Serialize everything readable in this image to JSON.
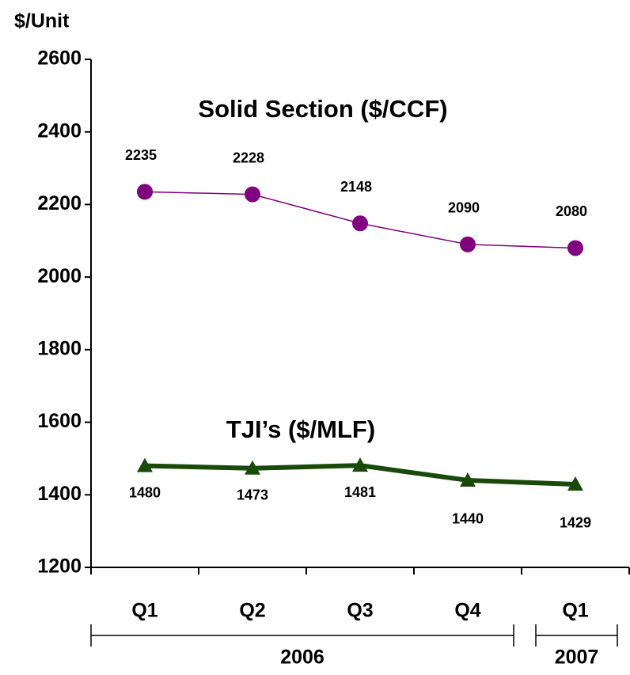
{
  "chart_data": {
    "type": "line",
    "y_label": "$/Unit",
    "categories": [
      "Q1",
      "Q2",
      "Q3",
      "Q4",
      "Q1"
    ],
    "x_groups": [
      "2006",
      "2006",
      "2006",
      "2006",
      "2007"
    ],
    "ylim": [
      1200,
      2600
    ],
    "yticks": [
      1200,
      1400,
      1600,
      1800,
      2000,
      2200,
      2400,
      2600
    ],
    "series": [
      {
        "name": "Solid Section ($/CCF)",
        "color": "#800080",
        "marker": "circle",
        "values": [
          2235,
          2228,
          2148,
          2090,
          2080
        ]
      },
      {
        "name": "TJI’s ($/MLF)",
        "color": "#1a4a0a",
        "marker": "triangle",
        "values": [
          1480,
          1473,
          1481,
          1440,
          1429
        ]
      }
    ]
  }
}
